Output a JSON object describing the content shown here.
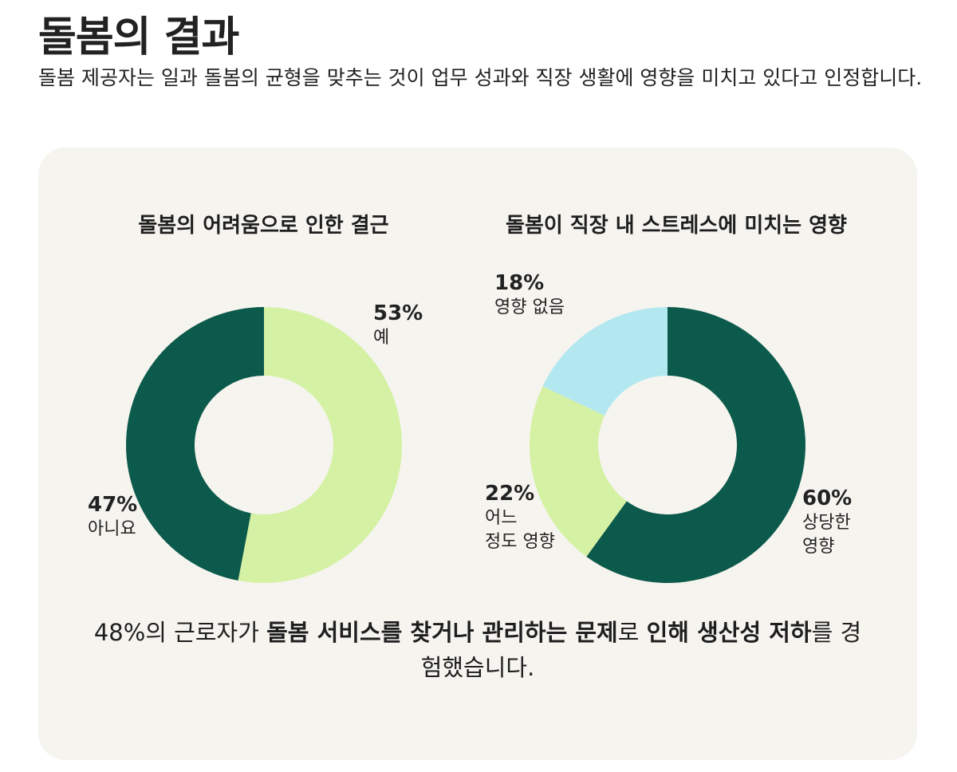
{
  "page": {
    "title": "돌봄의 결과",
    "subtitle": "돌봄 제공자는 일과 돌봄의 균형을 맞추는 것이 업무 성과와 직장 생활에 영향을 미치고 있다고 인정합니다."
  },
  "chart_data": [
    {
      "type": "pie",
      "title": "돌봄의 어려움으로 인한 결근",
      "slices": [
        {
          "label": "예",
          "value": 53,
          "value_label": "53%",
          "color": "#d4f1a4"
        },
        {
          "label": "아니요",
          "value": 47,
          "value_label": "47%",
          "color": "#0c5a4b"
        }
      ]
    },
    {
      "type": "pie",
      "title": "돌봄이 직장 내 스트레스에 미치는 영향",
      "slices": [
        {
          "label": "상당한\n영향",
          "value": 60,
          "value_label": "60%",
          "color": "#0c5a4b"
        },
        {
          "label": "어느\n정도 영향",
          "value": 22,
          "value_label": "22%",
          "color": "#d4f1a4"
        },
        {
          "label": "영향 없음",
          "value": 18,
          "value_label": "18%",
          "color": "#b3e8f1"
        }
      ]
    }
  ],
  "footnote": {
    "parts": [
      {
        "text": "48%의 근로자가 ",
        "bold": false
      },
      {
        "text": "돌봄 서비스를 찾거나 관리하는 문제",
        "bold": true
      },
      {
        "text": "로 ",
        "bold": false
      },
      {
        "text": "인해 생산성 저하",
        "bold": true
      },
      {
        "text": "를 경험했습니다.",
        "bold": false
      }
    ]
  }
}
